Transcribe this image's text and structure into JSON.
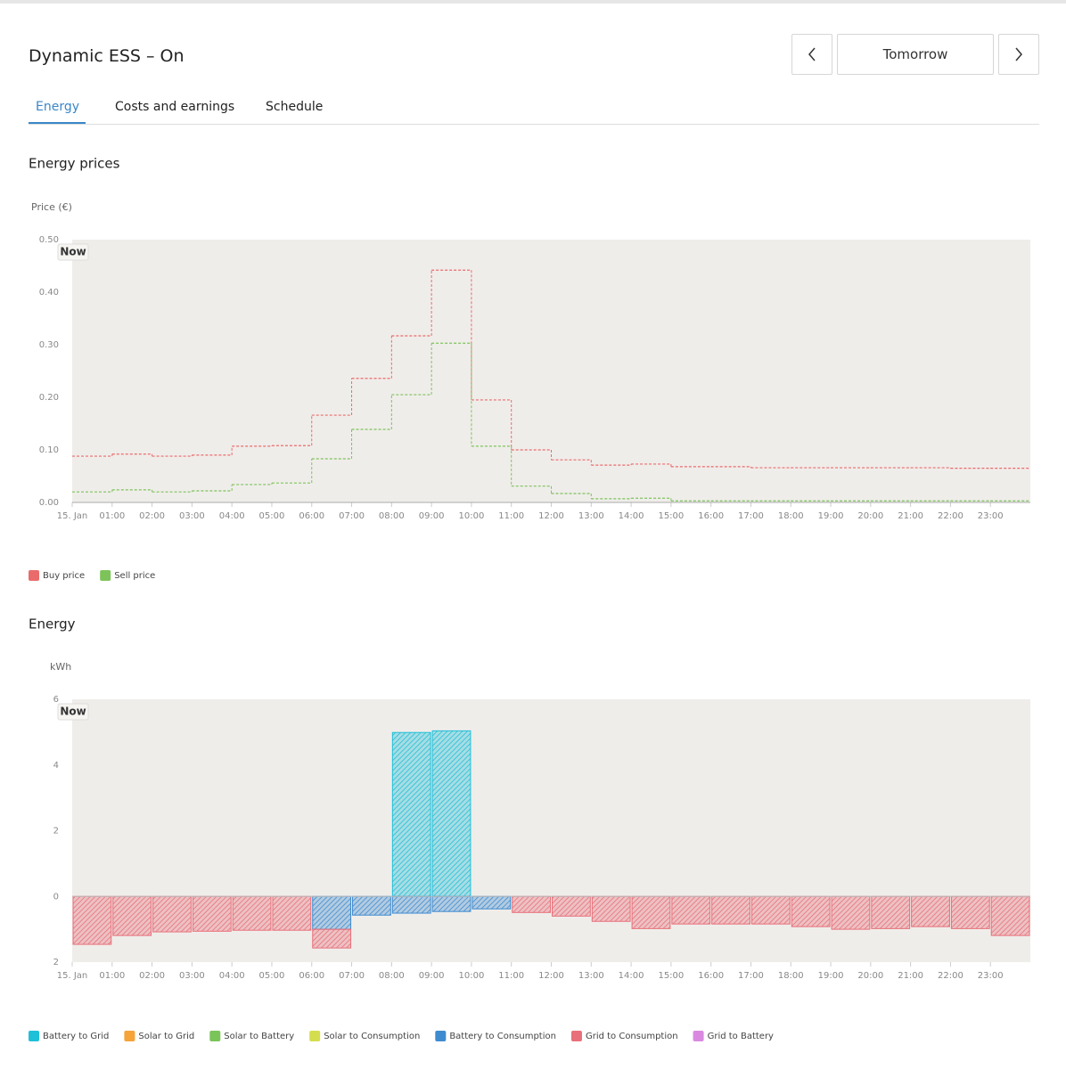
{
  "header": {
    "title": "Dynamic ESS – On",
    "period": "Tomorrow"
  },
  "tabs": {
    "items": [
      "Energy",
      "Costs and earnings",
      "Schedule"
    ],
    "active": 0
  },
  "chart_data": [
    {
      "type": "step-line",
      "title": "Energy prices",
      "y_label": "Price (€)",
      "annotation": "Now",
      "categories": [
        "15. Jan",
        "01:00",
        "02:00",
        "03:00",
        "04:00",
        "05:00",
        "06:00",
        "07:00",
        "08:00",
        "09:00",
        "10:00",
        "11:00",
        "12:00",
        "13:00",
        "14:00",
        "15:00",
        "16:00",
        "17:00",
        "18:00",
        "19:00",
        "20:00",
        "21:00",
        "22:00",
        "23:00"
      ],
      "series": [
        {
          "name": "Buy price",
          "color": "#ea6b6b",
          "values": [
            0.088,
            0.092,
            0.088,
            0.09,
            0.107,
            0.108,
            0.166,
            0.236,
            0.317,
            0.442,
            0.195,
            0.1,
            0.081,
            0.071,
            0.073,
            0.068,
            0.068,
            0.066,
            0.066,
            0.066,
            0.066,
            0.066,
            0.065,
            0.065
          ]
        },
        {
          "name": "Sell price",
          "color": "#7dc35a",
          "values": [
            0.02,
            0.024,
            0.02,
            0.022,
            0.034,
            0.037,
            0.083,
            0.139,
            0.205,
            0.303,
            0.107,
            0.031,
            0.017,
            0.007,
            0.008,
            0.003,
            0.003,
            0.003,
            0.003,
            0.003,
            0.003,
            0.003,
            0.003,
            0.003
          ]
        }
      ],
      "ylim": [
        0,
        0.5
      ],
      "yticks": [
        {
          "value": 0,
          "label": "0.00"
        },
        {
          "value": 0.1,
          "label": "0.10"
        },
        {
          "value": 0.2,
          "label": "0.20"
        },
        {
          "value": 0.3,
          "label": "0.30"
        },
        {
          "value": 0.4,
          "label": "0.40"
        },
        {
          "value": 0.5,
          "label": "0.50"
        }
      ],
      "grid": false
    },
    {
      "type": "stacked-bar",
      "title": "Energy",
      "y_label": "kWh",
      "annotation": "Now",
      "categories": [
        "15. Jan",
        "01:00",
        "02:00",
        "03:00",
        "04:00",
        "05:00",
        "06:00",
        "07:00",
        "08:00",
        "09:00",
        "10:00",
        "11:00",
        "12:00",
        "13:00",
        "14:00",
        "15:00",
        "16:00",
        "17:00",
        "18:00",
        "19:00",
        "20:00",
        "21:00",
        "22:00",
        "23:00"
      ],
      "series": [
        {
          "name": "Battery to Grid",
          "color": "#1fc0d8",
          "values": [
            0,
            0,
            0,
            0,
            0,
            0,
            0,
            0,
            4.99,
            5.04,
            0,
            0,
            0,
            0,
            0,
            0,
            0,
            0,
            0,
            0,
            0,
            0,
            0,
            0
          ]
        },
        {
          "name": "Solar to Grid",
          "color": "#f6a33a",
          "values": [
            0,
            0,
            0,
            0,
            0,
            0,
            0,
            0,
            0,
            0,
            0,
            0,
            0,
            0,
            0,
            0,
            0,
            0,
            0,
            0,
            0,
            0,
            0,
            0
          ]
        },
        {
          "name": "Solar to Battery",
          "color": "#7ac45a",
          "values": [
            0,
            0,
            0,
            0,
            0,
            0,
            0,
            0,
            0,
            0,
            0,
            0,
            0,
            0,
            0,
            0,
            0,
            0,
            0,
            0,
            0,
            0,
            0,
            0
          ]
        },
        {
          "name": "Solar to Consumption",
          "color": "#d4dd4e",
          "values": [
            0,
            0,
            0,
            0,
            0,
            0,
            0,
            0,
            0,
            0,
            0,
            0,
            0,
            0,
            0,
            0,
            0,
            0,
            0,
            0,
            0,
            0,
            0,
            0
          ]
        },
        {
          "name": "Battery to Consumption",
          "color": "#3f8bd0",
          "values": [
            0,
            0,
            0,
            0,
            0,
            0,
            -1.0,
            -0.57,
            -0.51,
            -0.46,
            -0.38,
            0,
            0,
            0,
            0,
            0,
            0,
            0,
            0,
            0,
            0,
            0,
            0,
            0
          ]
        },
        {
          "name": "Grid to Consumption",
          "color": "#e8707a",
          "values": [
            -1.46,
            -1.19,
            -1.08,
            -1.06,
            -1.03,
            -1.03,
            -0.57,
            0,
            0,
            0,
            0,
            -0.49,
            -0.6,
            -0.76,
            -0.98,
            -0.84,
            -0.84,
            -0.84,
            -0.92,
            -1.0,
            -0.98,
            -0.92,
            -0.98,
            -1.19
          ]
        },
        {
          "name": "Grid to Battery",
          "color": "#d98ae0",
          "values": [
            0,
            0,
            0,
            0,
            0,
            0,
            0,
            0,
            0,
            0,
            0,
            0,
            0,
            0,
            0,
            0,
            0,
            0,
            0,
            0,
            0,
            0,
            0,
            0
          ]
        }
      ],
      "ylim": [
        -2,
        6
      ],
      "yticks": [
        {
          "value": -2,
          "label": "2"
        },
        0,
        2,
        4,
        6
      ],
      "grid": false
    }
  ]
}
